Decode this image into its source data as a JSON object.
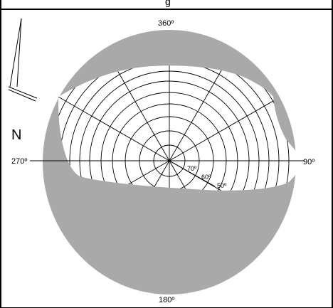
{
  "header": {
    "clipped_text": "g"
  },
  "compass": {
    "north_label": "N"
  },
  "azimuth_labels": {
    "top": "360º",
    "right": "90º",
    "bottom": "180º",
    "left": "270º"
  },
  "altitude_labels": [
    "70º",
    "60º",
    "50º"
  ],
  "colors": {
    "obstruction": "#a9a9a9",
    "grid": "#000000",
    "sky": "#ffffff"
  }
}
